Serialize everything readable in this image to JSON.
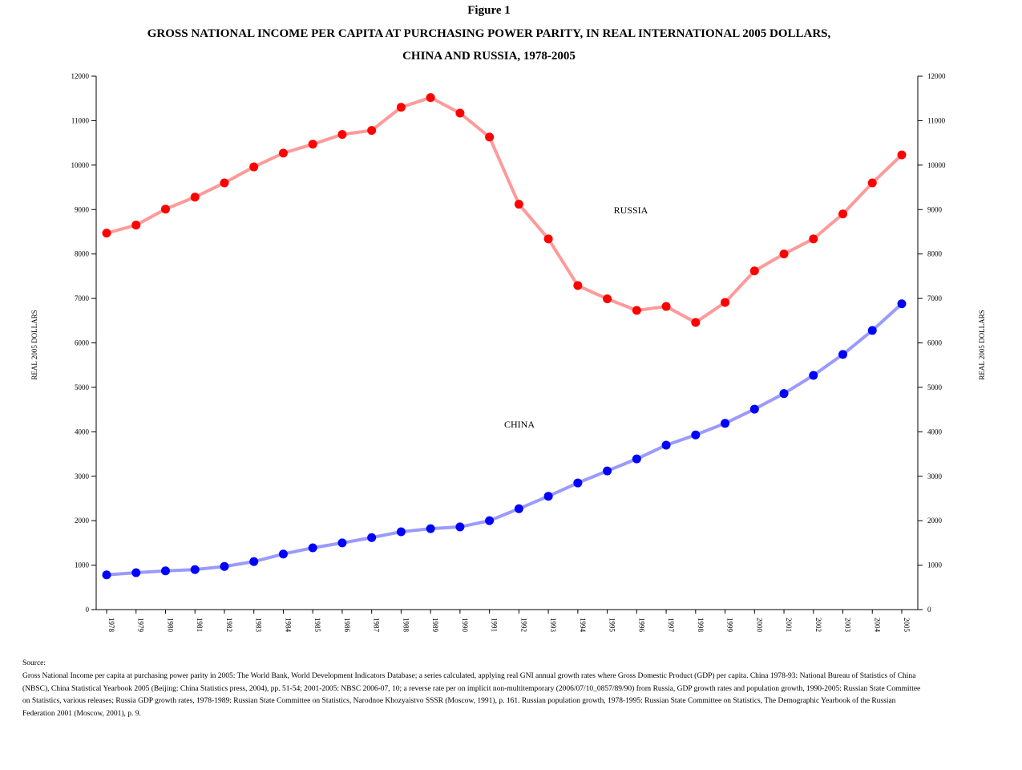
{
  "chart_data": {
    "type": "line",
    "figure_label": "Figure 1",
    "title": "GROSS NATIONAL INCOME PER CAPITA AT PURCHASING POWER PARITY, IN REAL INTERNATIONAL 2005 DOLLARS,",
    "subtitle": "CHINA AND RUSSIA, 1978-2005",
    "y_label": "REAL 2005 DOLLARS",
    "categories": [
      "1978",
      "1979",
      "1980",
      "1981",
      "1982",
      "1983",
      "1984",
      "1985",
      "1986",
      "1987",
      "1988",
      "1989",
      "1990",
      "1991",
      "1992",
      "1993",
      "1994",
      "1995",
      "1996",
      "1997",
      "1998",
      "1999",
      "2000",
      "2001",
      "2002",
      "2003",
      "2004",
      "2005"
    ],
    "series": [
      {
        "name": "RUSSIA",
        "color": "#ff0000",
        "line_color": "#ff9a9a",
        "values": [
          8470,
          8650,
          9010,
          9280,
          9600,
          9960,
          10270,
          10470,
          10690,
          10780,
          11300,
          11520,
          11170,
          10630,
          9120,
          8340,
          7290,
          6990,
          6730,
          6820,
          6460,
          6910,
          7620,
          8000,
          8340,
          8900,
          9600,
          10230
        ]
      },
      {
        "name": "CHINA",
        "color": "#0000ff",
        "line_color": "#9a9aff",
        "values": [
          780,
          830,
          870,
          900,
          970,
          1080,
          1250,
          1390,
          1500,
          1620,
          1750,
          1820,
          1860,
          2000,
          2270,
          2550,
          2850,
          3120,
          3390,
          3700,
          3930,
          4190,
          4510,
          4860,
          5270,
          5740,
          6280,
          6880
        ]
      }
    ],
    "ylim": [
      0,
      12000
    ],
    "yticks": [
      0,
      1000,
      2000,
      3000,
      4000,
      5000,
      6000,
      7000,
      8000,
      9000,
      10000,
      11000,
      12000
    ],
    "source_heading": "Source:",
    "source_text": "Gross National Income per capita at purchasing power parity in 2005: The World Bank, World Development Indicators Database; a series calculated, applying real GNI annual growth rates where Gross Domestic Product (GDP) per capita. China 1978-93: National Bureau of Statistics of China (NBSC), China Statistical Yearbook 2005 (Beijing: China Statistics press, 2004), pp. 51-54; 2001-2005: NBSC 2006-07, 10; a reverse rate per on implicit non-multitemporary (2006/07/10_0857/89/90) from Russia, GDP growth rates and population growth, 1990-2005: Russian State Committee on Statistics, various releases; Russia GDP growth rates, 1978-1989: Russian State Committee on Statistics, Narodnoe Khozyaistvo SSSR (Moscow, 1991), p. 161. Russian population growth, 1978-1995: Russian State Committee on Statistics, The Demographic Yearbook of the Russian Federation 2001 (Moscow, 2001), p. 9."
  }
}
